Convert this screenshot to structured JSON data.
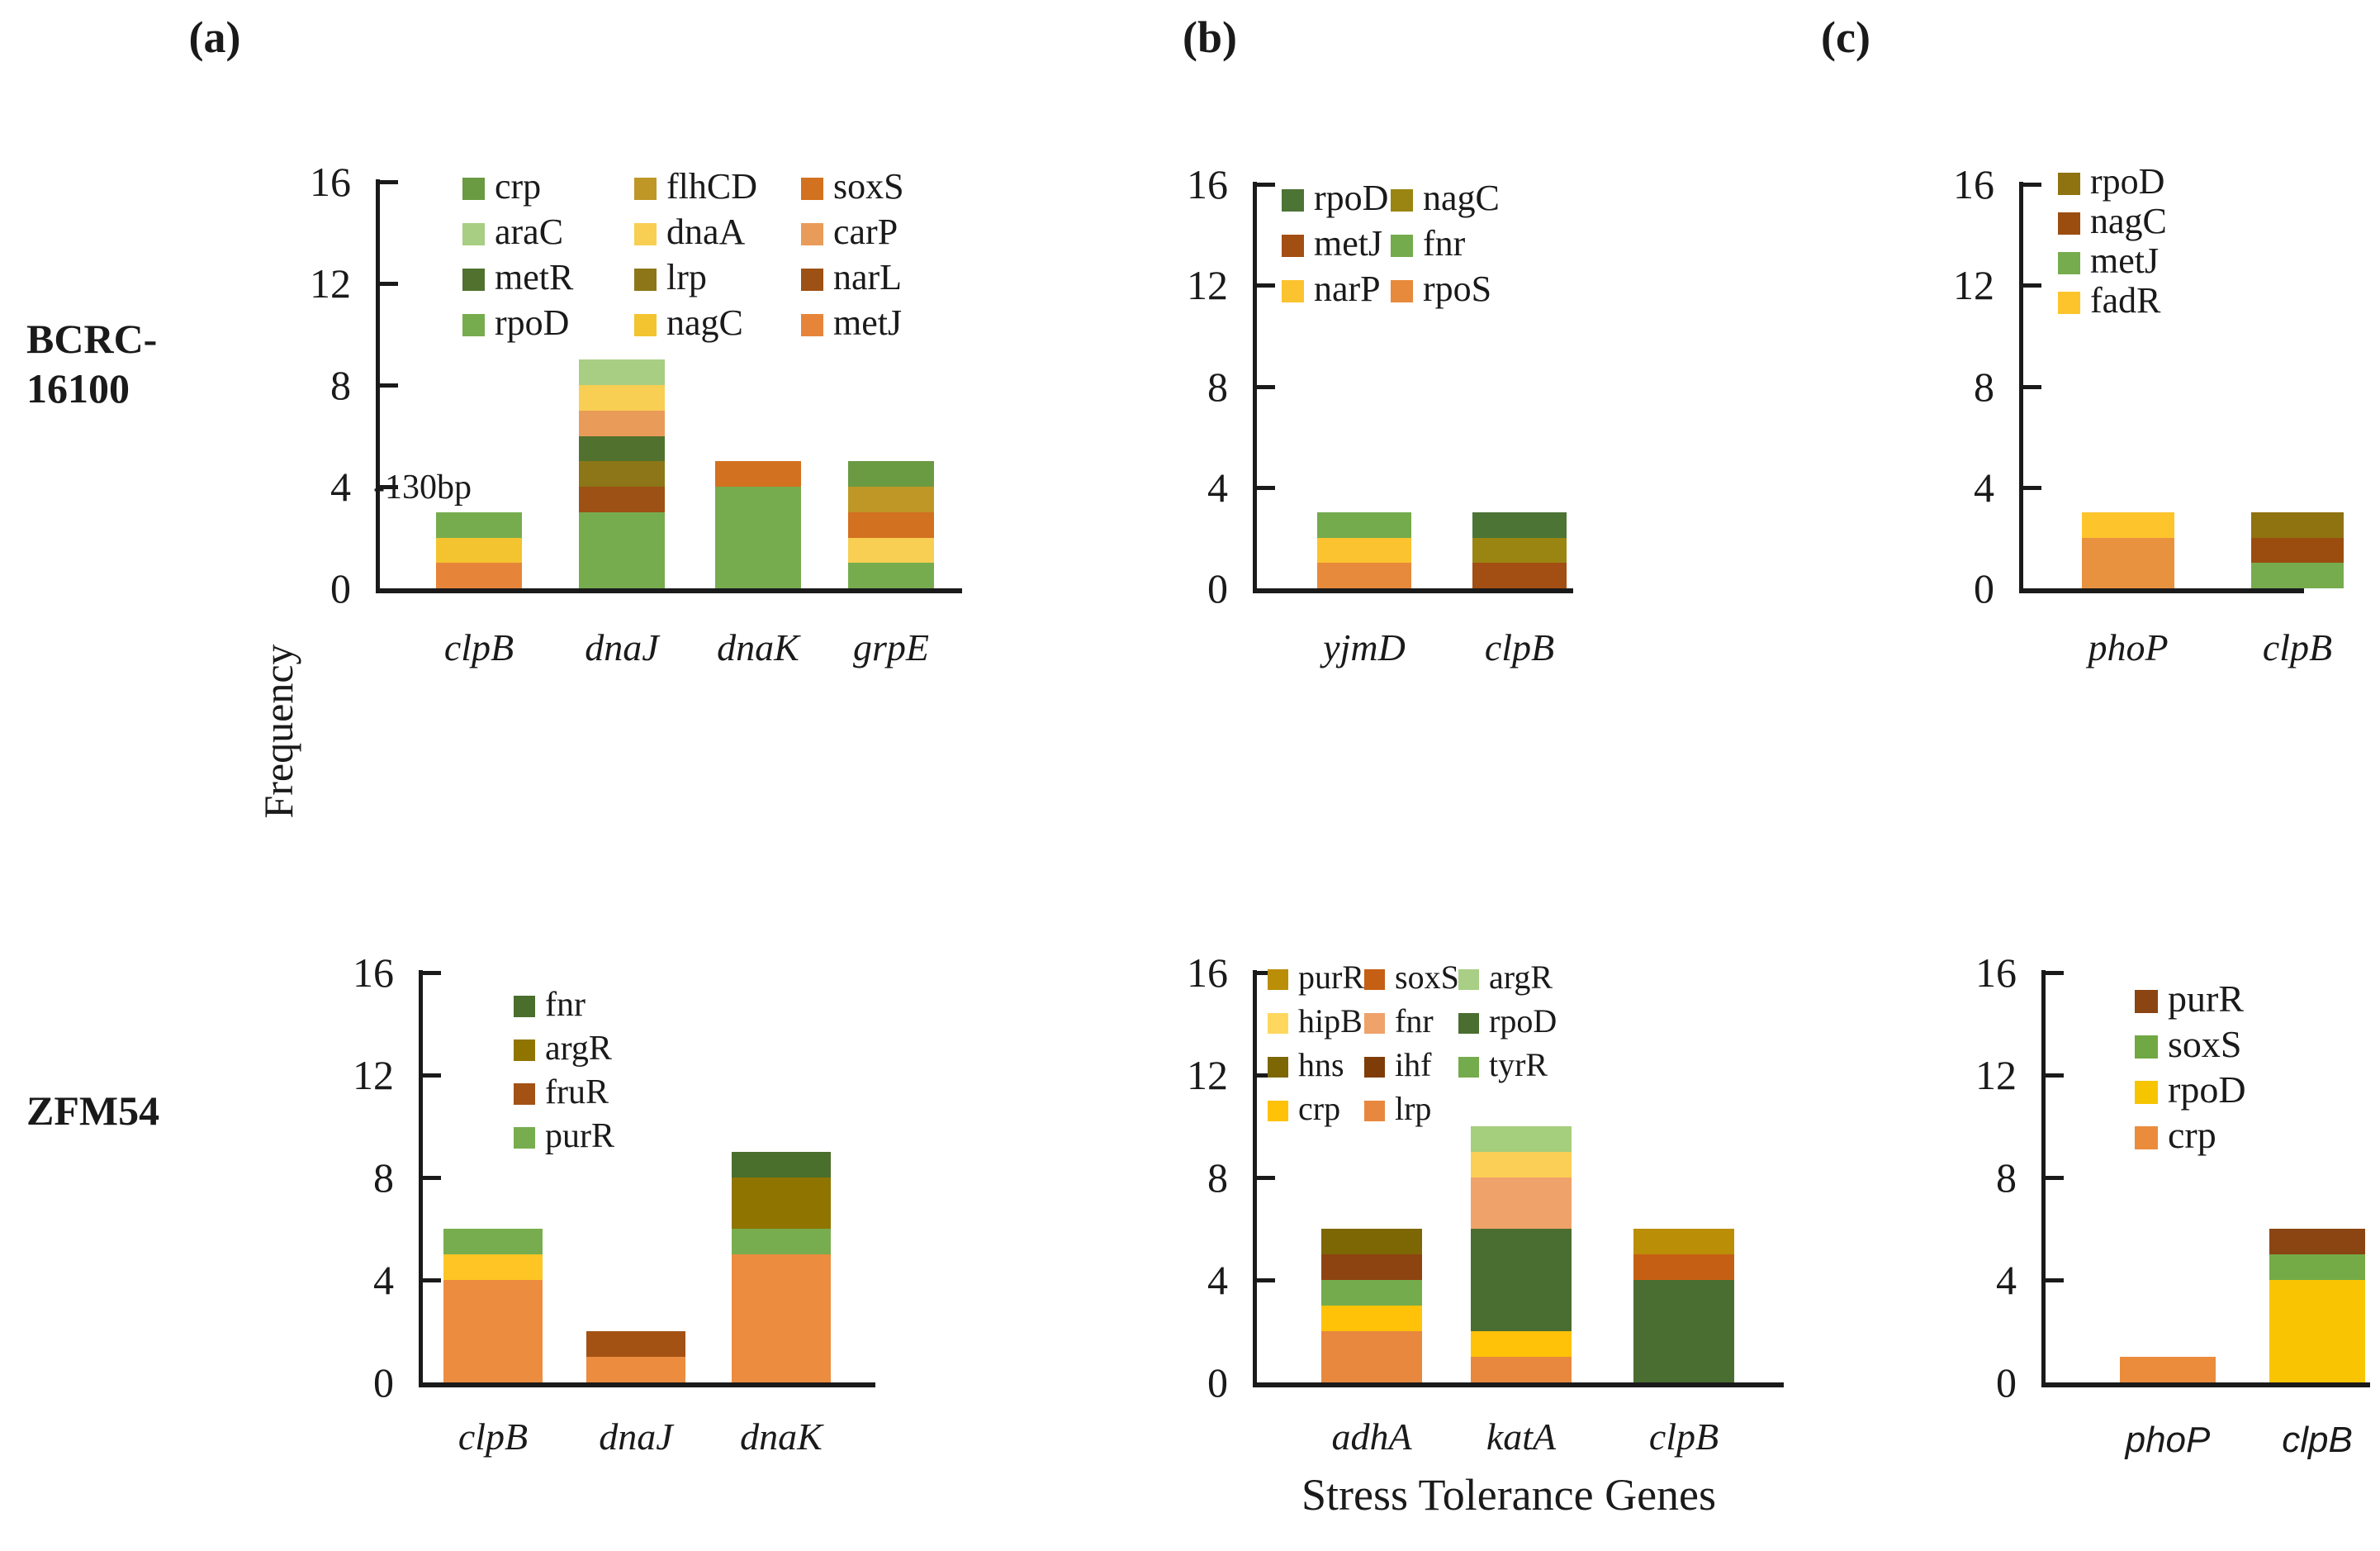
{
  "figure": {
    "xlabel": "Stress Tolerance Genes",
    "ylabel": "Frequency",
    "panel_titles": [
      "(a)",
      "(b)",
      "(c)"
    ],
    "row_labels": [
      {
        "lines": [
          "BCRC-",
          "16100"
        ]
      },
      {
        "lines": [
          "ZFM54"
        ]
      }
    ],
    "text_color": "#1a1a1a"
  },
  "chart_data": [
    {
      "id": "a-top",
      "type": "bar",
      "panel": "(a)",
      "strain": "BCRC-16100",
      "ylim": [
        0,
        16
      ],
      "yticks": [
        0,
        4,
        8,
        12,
        16
      ],
      "grid": false,
      "legend_position": "top-inside",
      "annotation": {
        "text": "-130bp",
        "target": "clpB"
      },
      "categories": [
        "clpB",
        "dnaJ",
        "dnaK",
        "grpE"
      ],
      "legend_columns": [
        [
          {
            "label": "crp",
            "color": "#6A9A42"
          },
          {
            "label": "araC",
            "color": "#A7CE82"
          },
          {
            "label": "metR",
            "color": "#50722E"
          },
          {
            "label": "rpoD",
            "color": "#76AC4E"
          }
        ],
        [
          {
            "label": "flhCD",
            "color": "#BE9726"
          },
          {
            "label": "dnaA",
            "color": "#F8CE53"
          },
          {
            "label": "lrp",
            "color": "#8C7618"
          },
          {
            "label": "nagC",
            "color": "#F3C42F"
          }
        ],
        [
          {
            "label": "soxS",
            "color": "#D2711F"
          },
          {
            "label": "carP",
            "color": "#E99C59"
          },
          {
            "label": "narL",
            "color": "#9E5114"
          },
          {
            "label": "metJ",
            "color": "#E6853A"
          }
        ]
      ],
      "bars": [
        {
          "category": "clpB",
          "total": 3,
          "segments": [
            {
              "name": "metJ",
              "value": 1,
              "color": "#E6853A"
            },
            {
              "name": "nagC",
              "value": 1,
              "color": "#F3C42F"
            },
            {
              "name": "rpoD",
              "value": 1,
              "color": "#76AC4E"
            }
          ]
        },
        {
          "category": "dnaJ",
          "total": 9,
          "segments": [
            {
              "name": "rpoD",
              "value": 3,
              "color": "#76AC4E"
            },
            {
              "name": "narL",
              "value": 1,
              "color": "#9E5114"
            },
            {
              "name": "lrp",
              "value": 1,
              "color": "#8C7618"
            },
            {
              "name": "metR",
              "value": 1,
              "color": "#50722E"
            },
            {
              "name": "carP",
              "value": 1,
              "color": "#E99C59"
            },
            {
              "name": "dnaA",
              "value": 1,
              "color": "#F8CE53"
            },
            {
              "name": "araC",
              "value": 1,
              "color": "#A7CE82"
            }
          ]
        },
        {
          "category": "dnaK",
          "total": 5,
          "segments": [
            {
              "name": "rpoD",
              "value": 4,
              "color": "#76AC4E"
            },
            {
              "name": "soxS",
              "value": 1,
              "color": "#D2711F"
            }
          ]
        },
        {
          "category": "grpE",
          "total": 5,
          "segments": [
            {
              "name": "rpoD",
              "value": 1,
              "color": "#76AC4E"
            },
            {
              "name": "dnaA",
              "value": 1,
              "color": "#F8CE53"
            },
            {
              "name": "soxS",
              "value": 1,
              "color": "#D2711F"
            },
            {
              "name": "flhCD",
              "value": 1,
              "color": "#BE9726"
            },
            {
              "name": "crp",
              "value": 1,
              "color": "#6A9A42"
            }
          ]
        }
      ]
    },
    {
      "id": "b-top",
      "type": "bar",
      "panel": "(b)",
      "strain": "BCRC-16100",
      "ylim": [
        0,
        16
      ],
      "yticks": [
        0,
        4,
        8,
        12,
        16
      ],
      "grid": false,
      "legend_position": "top-inside",
      "categories": [
        "yjmD",
        "clpB"
      ],
      "legend_columns": [
        [
          {
            "label": "rpoD",
            "color": "#4C7435"
          },
          {
            "label": "metJ",
            "color": "#A34E12"
          },
          {
            "label": "narP",
            "color": "#FCC330"
          }
        ],
        [
          {
            "label": "nagC",
            "color": "#9A8512"
          },
          {
            "label": "fnr",
            "color": "#74AB4D"
          },
          {
            "label": "rpoS",
            "color": "#E78A3C"
          }
        ]
      ],
      "bars": [
        {
          "category": "yjmD",
          "total": 3,
          "segments": [
            {
              "name": "rpoS",
              "value": 1,
              "color": "#E78A3C"
            },
            {
              "name": "narP",
              "value": 1,
              "color": "#FCC330"
            },
            {
              "name": "fnr",
              "value": 1,
              "color": "#74AB4D"
            }
          ]
        },
        {
          "category": "clpB",
          "total": 3,
          "segments": [
            {
              "name": "metJ",
              "value": 1,
              "color": "#A34E12"
            },
            {
              "name": "nagC",
              "value": 1,
              "color": "#9A8512"
            },
            {
              "name": "rpoD",
              "value": 1,
              "color": "#4C7435"
            }
          ]
        }
      ]
    },
    {
      "id": "c-top",
      "type": "bar",
      "panel": "(c)",
      "strain": "BCRC-16100",
      "ylim": [
        0,
        16
      ],
      "yticks": [
        0,
        4,
        8,
        12,
        16
      ],
      "grid": false,
      "legend_position": "top-inside",
      "categories": [
        "phoP",
        "clpB"
      ],
      "legend_columns": [
        [
          {
            "label": "rpoD",
            "color": "#8F7310"
          },
          {
            "label": "nagC",
            "color": "#9B4D10"
          },
          {
            "label": "metJ",
            "color": "#76AC4E"
          },
          {
            "label": "fadR",
            "color": "#FDC42C"
          }
        ]
      ],
      "bars": [
        {
          "category": "phoP",
          "total": 3,
          "segments": [
            {
              "name": "",
              "value": 2,
              "color": "#E8923F"
            },
            {
              "name": "fadR",
              "value": 1,
              "color": "#FDC42C"
            }
          ]
        },
        {
          "category": "clpB",
          "total": 3,
          "segments": [
            {
              "name": "metJ",
              "value": 1,
              "color": "#76AC4E"
            },
            {
              "name": "nagC",
              "value": 1,
              "color": "#9B4D10"
            },
            {
              "name": "rpoD",
              "value": 1,
              "color": "#8F7310"
            }
          ]
        }
      ]
    },
    {
      "id": "a-bottom",
      "type": "bar",
      "panel": "(a)",
      "strain": "ZFM54",
      "ylim": [
        0,
        16
      ],
      "yticks": [
        0,
        4,
        8,
        12,
        16
      ],
      "grid": false,
      "legend_position": "top-inside",
      "categories": [
        "clpB",
        "dnaJ",
        "dnaK"
      ],
      "legend_columns": [
        [
          {
            "label": "fnr",
            "color": "#4A6E2C"
          },
          {
            "label": "argR",
            "color": "#8F7500"
          },
          {
            "label": "fruR",
            "color": "#A35214"
          },
          {
            "label": "purR",
            "color": "#77AD4F"
          }
        ]
      ],
      "bars": [
        {
          "category": "clpB",
          "total": 6,
          "segments": [
            {
              "name": "",
              "value": 4,
              "color": "#EC8C3F"
            },
            {
              "name": "",
              "value": 1,
              "color": "#FFC524"
            },
            {
              "name": "purR",
              "value": 1,
              "color": "#77AD4F"
            }
          ]
        },
        {
          "category": "dnaJ",
          "total": 2,
          "segments": [
            {
              "name": "",
              "value": 1,
              "color": "#EC8C3F"
            },
            {
              "name": "fruR",
              "value": 1,
              "color": "#A35214"
            }
          ]
        },
        {
          "category": "dnaK",
          "total": 9,
          "segments": [
            {
              "name": "",
              "value": 5,
              "color": "#EC8C3F"
            },
            {
              "name": "purR",
              "value": 1,
              "color": "#77AD4F"
            },
            {
              "name": "argR",
              "value": 2,
              "color": "#8F7500"
            },
            {
              "name": "fnr",
              "value": 1,
              "color": "#4A6E2C"
            }
          ]
        }
      ]
    },
    {
      "id": "b-bottom",
      "type": "bar",
      "panel": "(b)",
      "strain": "ZFM54",
      "ylim": [
        0,
        16
      ],
      "yticks": [
        0,
        4,
        8,
        12,
        16
      ],
      "grid": false,
      "legend_position": "top-inside",
      "categories": [
        "adhA",
        "katA",
        "clpB"
      ],
      "legend_columns": [
        [
          {
            "label": "purR",
            "color": "#BB8E07"
          },
          {
            "label": "hipB",
            "color": "#FFD75E"
          },
          {
            "label": "hns",
            "color": "#7C6704"
          },
          {
            "label": "crp",
            "color": "#FFC208"
          }
        ],
        [
          {
            "label": "soxS",
            "color": "#C55F14"
          },
          {
            "label": "fnr",
            "color": "#F0A26B"
          },
          {
            "label": "ihf",
            "color": "#7E3D08"
          },
          {
            "label": "lrp",
            "color": "#E8883E"
          }
        ],
        [
          {
            "label": "argR",
            "color": "#A8CF85"
          },
          {
            "label": "rpoD",
            "color": "#4A6E31"
          },
          {
            "label": "tyrR",
            "color": "#74AB4D"
          }
        ]
      ],
      "bars": [
        {
          "category": "adhA",
          "total": 6,
          "segments": [
            {
              "name": "lrp",
              "value": 2,
              "color": "#E8883E"
            },
            {
              "name": "crp",
              "value": 1,
              "color": "#FFC208"
            },
            {
              "name": "tyrR",
              "value": 1,
              "color": "#74AB4D"
            },
            {
              "name": "ihf",
              "value": 1,
              "color": "#8E4410"
            },
            {
              "name": "hns",
              "value": 1,
              "color": "#7C6704"
            }
          ]
        },
        {
          "category": "katA",
          "total": 10,
          "segments": [
            {
              "name": "lrp",
              "value": 1,
              "color": "#E8883E"
            },
            {
              "name": "crp",
              "value": 1,
              "color": "#FFC208"
            },
            {
              "name": "rpoD",
              "value": 4,
              "color": "#4A6E31"
            },
            {
              "name": "fnr",
              "value": 2,
              "color": "#F0A26B"
            },
            {
              "name": "hipB",
              "value": 1,
              "color": "#FBCE55"
            },
            {
              "name": "argR",
              "value": 1,
              "color": "#A5CE7D"
            }
          ]
        },
        {
          "category": "clpB",
          "total": 6,
          "segments": [
            {
              "name": "rpoD",
              "value": 4,
              "color": "#4A6E31"
            },
            {
              "name": "soxS",
              "value": 1,
              "color": "#C55F14"
            },
            {
              "name": "purR",
              "value": 1,
              "color": "#BB8E07"
            }
          ]
        }
      ]
    },
    {
      "id": "c-bottom",
      "type": "bar",
      "panel": "(c)",
      "strain": "ZFM54",
      "ylim": [
        0,
        16
      ],
      "yticks": [
        0,
        4,
        8,
        12,
        16
      ],
      "grid": false,
      "legend_position": "top-inside",
      "categories": [
        "phoP",
        "clpB"
      ],
      "legend_columns": [
        [
          {
            "label": "purR",
            "color": "#8A4513"
          },
          {
            "label": "soxS",
            "color": "#70A843"
          },
          {
            "label": "rpoD",
            "color": "#F6C500"
          },
          {
            "label": "crp",
            "color": "#EB8C3D"
          }
        ]
      ],
      "bars": [
        {
          "category": "phoP",
          "total": 1,
          "segments": [
            {
              "name": "crp",
              "value": 1,
              "color": "#EB8C3D"
            }
          ]
        },
        {
          "category": "clpB",
          "total": 6,
          "segments": [
            {
              "name": "rpoD",
              "value": 4,
              "color": "#F9C502"
            },
            {
              "name": "soxS",
              "value": 1,
              "color": "#74AB47"
            },
            {
              "name": "purR",
              "value": 1,
              "color": "#8A4513"
            }
          ]
        }
      ]
    }
  ]
}
